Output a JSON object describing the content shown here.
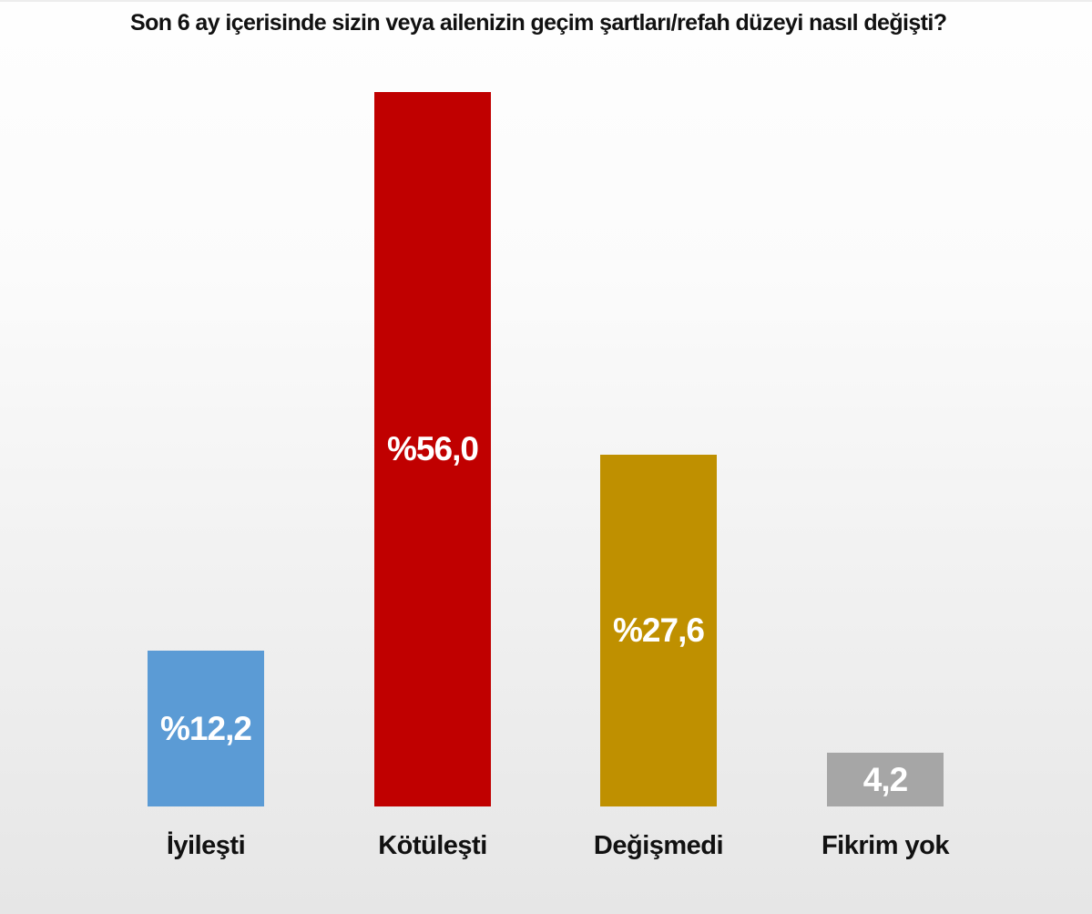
{
  "chart_data": {
    "type": "bar",
    "title": "Son 6 ay içerisinde sizin veya ailenizin geçim şartları/refah düzeyi nasıl değişti?",
    "categories": [
      "İyileşti",
      "Kötüleşti",
      "Değişmedi",
      "Fikrim yok"
    ],
    "values": [
      12.2,
      56.0,
      27.6,
      4.2
    ],
    "value_labels": [
      "%12,2",
      "%56,0",
      "%27,6",
      "4,2"
    ],
    "bar_colors": [
      "#5b9bd5",
      "#c00000",
      "#bf9000",
      "#a6a6a6"
    ],
    "value_label_color": "#ffffff",
    "title_color": "#111111",
    "category_label_color": "#111111",
    "ylim": [
      0,
      60
    ],
    "grid": false,
    "legend": false,
    "axis_lines": false,
    "value_label_position": "centered-inside-bar"
  }
}
